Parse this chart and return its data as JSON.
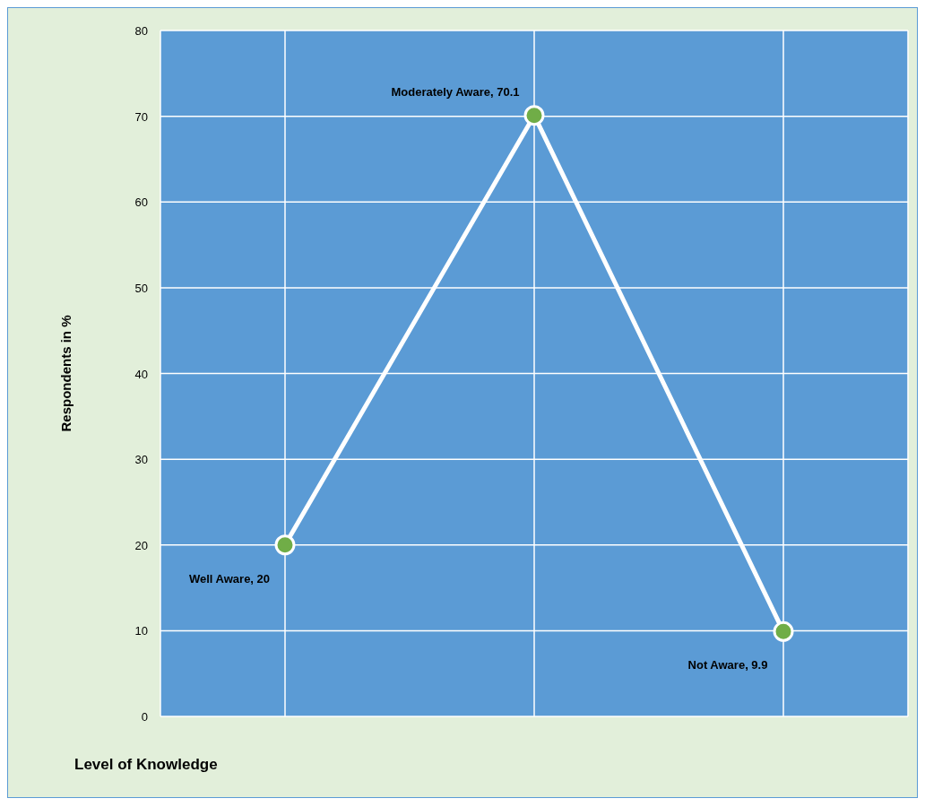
{
  "chart_data": {
    "type": "line",
    "xlabel": "Level of Knowledge",
    "ylabel": "Respondents in %",
    "categories": [
      null,
      null,
      null
    ],
    "ylim": [
      0,
      80
    ],
    "yticks": [
      0,
      10,
      20,
      30,
      40,
      50,
      60,
      70,
      80
    ],
    "series": [
      {
        "color": "#ffffff",
        "values": [
          20,
          70.1,
          9.9
        ],
        "value_labels": [
          "Well Aware, 20",
          "Moderately Aware, 70.1",
          "Not Aware, 9.9"
        ]
      }
    ],
    "marker": "circle",
    "line_style": "solid",
    "grid": true
  }
}
